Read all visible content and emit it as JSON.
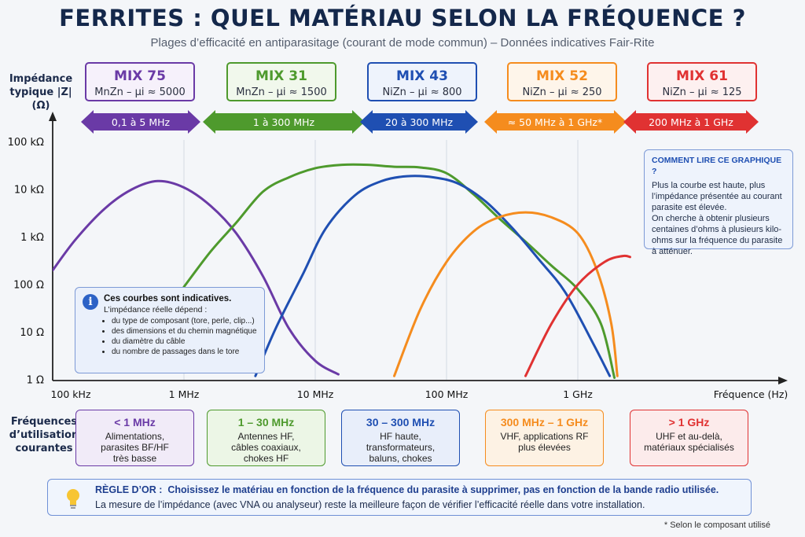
{
  "header": {
    "title": "FERRITES : QUEL MATÉRIAU SELON LA FRÉQUENCE ?",
    "subtitle": "Plages d’efficacité en antiparasitage (courant de mode commun) – Données indicatives Fair-Rite"
  },
  "mixes": [
    {
      "name": "MIX 75",
      "spec": "MnZn – µi ≈ 5000",
      "range": "0,1 à 5 MHz",
      "color": "#6a3aa6"
    },
    {
      "name": "MIX 31",
      "spec": "MnZn – µi ≈ 1500",
      "range": "1 à 300 MHz",
      "color": "#4e9a2d"
    },
    {
      "name": "MIX 43",
      "spec": "NiZn – µi ≈ 800",
      "range": "20 à 300 MHz",
      "color": "#1f4fb2"
    },
    {
      "name": "MIX 52",
      "spec": "NiZn – µi ≈ 250",
      "range": "≈ 50 MHz à 1 GHz*",
      "color": "#f58c1e"
    },
    {
      "name": "MIX 61",
      "spec": "NiZn – µi ≈ 125",
      "range": "200 MHz à 1 GHz",
      "color": "#e03232"
    }
  ],
  "chart_data": {
    "type": "line",
    "ylabel": "Impédance\ntypique |Z|\n(Ω)",
    "xlabel": "Fréquence (Hz)",
    "x_scale": "log",
    "y_scale": "log",
    "xlim": [
      100000,
      2000000000
    ],
    "ylim": [
      1,
      100000
    ],
    "x_ticks": [
      100000,
      1000000,
      10000000,
      100000000,
      1000000000
    ],
    "x_tick_labels": [
      "100 kHz",
      "1 MHz",
      "10 MHz",
      "100 MHz",
      "1 GHz"
    ],
    "y_ticks": [
      1,
      10,
      100,
      1000,
      10000,
      100000
    ],
    "y_tick_labels": [
      "1 Ω",
      "10 Ω",
      "100 Ω",
      "1 kΩ",
      "10 kΩ",
      "100 kΩ"
    ],
    "grid": "vertical",
    "series": [
      {
        "name": "MIX 75",
        "color": "#6a3aa6",
        "points": [
          [
            100000,
            200
          ],
          [
            150000,
            900
          ],
          [
            250000,
            4000
          ],
          [
            400000,
            10000
          ],
          [
            630000,
            15000
          ],
          [
            1000000,
            11000
          ],
          [
            1600000,
            4500
          ],
          [
            2500000,
            1200
          ],
          [
            4000000,
            150
          ],
          [
            6300000,
            12
          ],
          [
            10000000,
            2.5
          ],
          [
            15000000,
            1.3
          ]
        ]
      },
      {
        "name": "MIX 31",
        "color": "#4e9a2d",
        "points": [
          [
            1000000,
            90
          ],
          [
            1600000,
            500
          ],
          [
            2500000,
            2000
          ],
          [
            4000000,
            9000
          ],
          [
            6300000,
            18000
          ],
          [
            10000000,
            28000
          ],
          [
            16000000,
            33000
          ],
          [
            25000000,
            33000
          ],
          [
            40000000,
            30000
          ],
          [
            63000000,
            29000
          ],
          [
            100000000,
            22000
          ],
          [
            160000000,
            8000
          ],
          [
            250000000,
            2500
          ],
          [
            400000000,
            800
          ],
          [
            630000000,
            250
          ],
          [
            1000000000,
            80
          ],
          [
            1500000000,
            15
          ],
          [
            1900000000,
            1.1
          ]
        ]
      },
      {
        "name": "MIX 43",
        "color": "#1f4fb2",
        "points": [
          [
            3500000,
            1.2
          ],
          [
            5000000,
            12
          ],
          [
            8000000,
            160
          ],
          [
            12000000,
            1500
          ],
          [
            20000000,
            7500
          ],
          [
            32000000,
            15000
          ],
          [
            50000000,
            19000
          ],
          [
            80000000,
            18000
          ],
          [
            125000000,
            13000
          ],
          [
            200000000,
            5500
          ],
          [
            320000000,
            1500
          ],
          [
            500000000,
            350
          ],
          [
            800000000,
            70
          ],
          [
            1300000000,
            6
          ],
          [
            1750000000,
            1.2
          ]
        ]
      },
      {
        "name": "MIX 52",
        "color": "#f58c1e",
        "points": [
          [
            40000000,
            1.2
          ],
          [
            63000000,
            30
          ],
          [
            100000000,
            300
          ],
          [
            160000000,
            1300
          ],
          [
            250000000,
            2600
          ],
          [
            400000000,
            3300
          ],
          [
            630000000,
            2600
          ],
          [
            1000000000,
            1200
          ],
          [
            1400000000,
            200
          ],
          [
            1800000000,
            15
          ],
          [
            2000000000,
            1.2
          ]
        ]
      },
      {
        "name": "MIX 61",
        "color": "#e03232",
        "points": [
          [
            400000000,
            1.2
          ],
          [
            630000000,
            15
          ],
          [
            1000000000,
            100
          ],
          [
            1600000000,
            300
          ],
          [
            2200000000,
            400
          ],
          [
            2500000000,
            380
          ]
        ]
      }
    ]
  },
  "note": {
    "title": "Ces courbes sont indicatives.",
    "text": "L’impédance réelle dépend :",
    "items": [
      "du type de composant (tore, perle, clip...)",
      "des dimensions et du chemin magnétique",
      "du diamètre du câble",
      "du nombre de passages dans le tore"
    ]
  },
  "howto": {
    "title": "COMMENT LIRE CE GRAPHIQUE ?",
    "p1": "Plus la courbe est haute, plus l’impédance présentée au courant parasite est élevée.",
    "p2": "On cherche à obtenir plusieurs centaines d’ohms à plusieurs kilo-ohms sur la fréquence du parasite à atténuer."
  },
  "usage": {
    "label": "Fréquences\nd’utilisation\ncourantes",
    "boxes": [
      {
        "title": "< 1 MHz",
        "text": "Alimentations,\nparasites BF/HF\ntrès basse",
        "color": "#6a3aa6",
        "bg": "#f1ebf8"
      },
      {
        "title": "1 – 30 MHz",
        "text": "Antennes HF,\ncâbles coaxiaux,\nchokes HF",
        "color": "#4e9a2d",
        "bg": "#ecf6e6"
      },
      {
        "title": "30 – 300 MHz",
        "text": "HF haute,\ntransformateurs,\nbaluns, chokes",
        "color": "#1f4fb2",
        "bg": "#e8eefa"
      },
      {
        "title": "300 MHz – 1 GHz",
        "text": "VHF, applications RF\nplus élevées",
        "color": "#f58c1e",
        "bg": "#fdf2e4"
      },
      {
        "title": "> 1 GHz",
        "text": "UHF et au-delà,\nmatériaux spécialisés",
        "color": "#e03232",
        "bg": "#fcebeb"
      }
    ]
  },
  "rule": {
    "label": "RÈGLE D’OR :",
    "line1": "Choisissez le matériau en fonction de la fréquence du parasite à supprimer, pas en fonction de la bande radio utilisée.",
    "line2": "La mesure de l’impédance (avec VNA ou analyseur) reste la meilleure façon de vérifier l’efficacité réelle dans votre installation."
  },
  "footnote": "* Selon le composant utilisé"
}
